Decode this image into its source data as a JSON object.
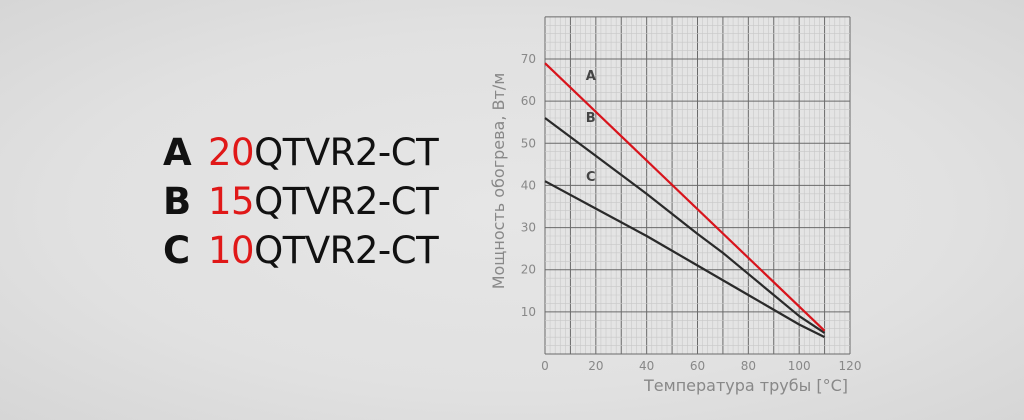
{
  "legend": [
    {
      "letter": "A",
      "number": "20",
      "model": "QTVR2-CT"
    },
    {
      "letter": "B",
      "number": "15",
      "model": "QTVR2-CT"
    },
    {
      "letter": "C",
      "number": "10",
      "model": "QTVR2-CT"
    }
  ],
  "colors": {
    "accent": "#e01818",
    "series_a": "#d8141c",
    "series_other": "#2a2a2a"
  },
  "chart_data": {
    "type": "line",
    "xlabel": "Температура трубы [°C]",
    "ylabel": "Мощность обогрева, Вт/м",
    "xlim": [
      0,
      120
    ],
    "ylim": [
      0,
      80
    ],
    "xticks": [
      0,
      20,
      40,
      60,
      80,
      100,
      120
    ],
    "yticks": [
      10,
      20,
      30,
      40,
      50,
      60,
      70
    ],
    "grid": true,
    "series": [
      {
        "name": "A",
        "x": [
          0,
          110
        ],
        "y": [
          69,
          5.5
        ],
        "color": "#d8141c"
      },
      {
        "name": "B",
        "x": [
          0,
          20,
          40,
          60,
          70,
          80,
          90,
          100,
          110
        ],
        "y": [
          56,
          47,
          38,
          28.5,
          24,
          19,
          14,
          9,
          5
        ],
        "color": "#2a2a2a"
      },
      {
        "name": "C",
        "x": [
          0,
          20,
          40,
          50,
          60,
          70,
          80,
          90,
          100,
          110
        ],
        "y": [
          41,
          34.5,
          28,
          24.5,
          21,
          17.5,
          14,
          10.5,
          7,
          4
        ],
        "color": "#2a2a2a"
      }
    ],
    "annotations": [
      {
        "text": "A",
        "x": 18,
        "y": 65
      },
      {
        "text": "B",
        "x": 18,
        "y": 55
      },
      {
        "text": "C",
        "x": 18,
        "y": 41
      }
    ]
  }
}
